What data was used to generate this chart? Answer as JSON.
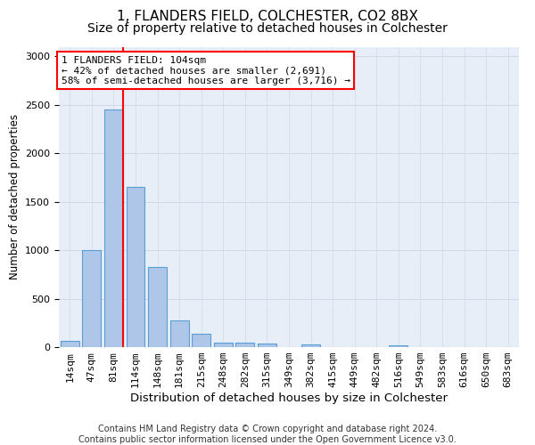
{
  "title1": "1, FLANDERS FIELD, COLCHESTER, CO2 8BX",
  "title2": "Size of property relative to detached houses in Colchester",
  "xlabel": "Distribution of detached houses by size in Colchester",
  "ylabel": "Number of detached properties",
  "bar_labels": [
    "14sqm",
    "47sqm",
    "81sqm",
    "114sqm",
    "148sqm",
    "181sqm",
    "215sqm",
    "248sqm",
    "282sqm",
    "315sqm",
    "349sqm",
    "382sqm",
    "415sqm",
    "449sqm",
    "482sqm",
    "516sqm",
    "549sqm",
    "583sqm",
    "616sqm",
    "650sqm",
    "683sqm"
  ],
  "bar_values": [
    60,
    1000,
    2450,
    1650,
    830,
    280,
    140,
    45,
    45,
    40,
    0,
    25,
    0,
    0,
    0,
    20,
    0,
    0,
    0,
    0,
    0
  ],
  "bar_color": "#aec6e8",
  "bar_edge_color": "#5a9fd4",
  "vline_color": "red",
  "vline_bar_index": 2,
  "annotation_text": "1 FLANDERS FIELD: 104sqm\n← 42% of detached houses are smaller (2,691)\n58% of semi-detached houses are larger (3,716) →",
  "annotation_box_color": "white",
  "annotation_box_edge": "red",
  "ylim": [
    0,
    3100
  ],
  "yticks": [
    0,
    500,
    1000,
    1500,
    2000,
    2500,
    3000
  ],
  "grid_color": "#d0d8e8",
  "background_color": "#e8eef8",
  "footer": "Contains HM Land Registry data © Crown copyright and database right 2024.\nContains public sector information licensed under the Open Government Licence v3.0.",
  "title1_fontsize": 11,
  "title2_fontsize": 10,
  "xlabel_fontsize": 9.5,
  "ylabel_fontsize": 8.5,
  "tick_fontsize": 8,
  "footer_fontsize": 7,
  "annotation_fontsize": 8
}
